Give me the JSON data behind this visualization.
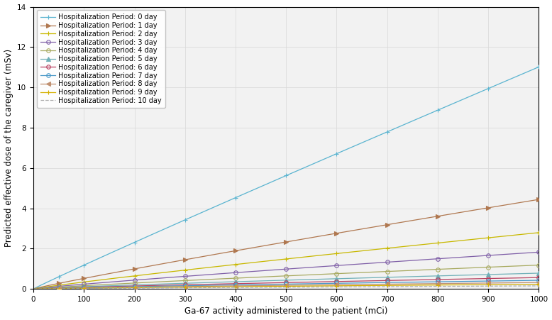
{
  "x_values": [
    50,
    100,
    200,
    300,
    400,
    500,
    600,
    700,
    800,
    900,
    1000
  ],
  "lines": [
    {
      "label": "Hospitalization Period: 0 day",
      "color": "#5ab4d0",
      "linestyle": "-",
      "marker": "+",
      "markerfacecolor": "filled",
      "a": 0.01355,
      "b": 0.97
    },
    {
      "label": "Hospitalization Period: 1 day",
      "color": "#b07850",
      "linestyle": "-",
      "marker": ">",
      "markerfacecolor": "filled",
      "a": 0.0072,
      "b": 0.93
    },
    {
      "label": "Hospitalization Period: 2 day",
      "color": "#c8b800",
      "linestyle": "-",
      "marker": "+",
      "markerfacecolor": "filled",
      "a": 0.0052,
      "b": 0.91
    },
    {
      "label": "Hospitalization Period: 3 day",
      "color": "#8060a8",
      "linestyle": "-",
      "marker": "o",
      "markerfacecolor": "open",
      "a": 0.0039,
      "b": 0.89
    },
    {
      "label": "Hospitalization Period: 4 day",
      "color": "#a8aa60",
      "linestyle": "-",
      "marker": "o",
      "markerfacecolor": "open",
      "a": 0.0029,
      "b": 0.87
    },
    {
      "label": "Hospitalization Period: 5 day",
      "color": "#70b0b8",
      "linestyle": "-",
      "marker": "^",
      "markerfacecolor": "filled",
      "a": 0.0022,
      "b": 0.85
    },
    {
      "label": "Hospitalization Period: 6 day",
      "color": "#b84060",
      "linestyle": "-",
      "marker": "o",
      "markerfacecolor": "open",
      "a": 0.0017,
      "b": 0.84
    },
    {
      "label": "Hospitalization Period: 7 day",
      "color": "#4898c8",
      "linestyle": "-",
      "marker": "o",
      "markerfacecolor": "open",
      "a": 0.00138,
      "b": 0.83
    },
    {
      "label": "Hospitalization Period: 8 day",
      "color": "#c09070",
      "linestyle": "-",
      "marker": "<",
      "markerfacecolor": "filled",
      "a": 0.0011,
      "b": 0.82
    },
    {
      "label": "Hospitalization Period: 9 day",
      "color": "#d4b000",
      "linestyle": "-",
      "marker": "+",
      "markerfacecolor": "filled",
      "a": 0.00086,
      "b": 0.81
    },
    {
      "label": "Hospitalization Period: 10 day",
      "color": "#b0b0b0",
      "linestyle": "--",
      "marker": "none",
      "markerfacecolor": "none",
      "a": 0.0006,
      "b": 0.8
    }
  ],
  "xlabel": "Ga-67 activity administered to the patient (mCi)",
  "ylabel": "Predicted effective dose of the caregiver (mSv)",
  "xlim": [
    0,
    1000
  ],
  "ylim": [
    0,
    14
  ],
  "yticks": [
    0,
    2,
    4,
    6,
    8,
    10,
    12,
    14
  ],
  "xticks": [
    0,
    100,
    200,
    300,
    400,
    500,
    600,
    700,
    800,
    900,
    1000
  ],
  "background_color": "#f2f2f2",
  "legend_fontsize": 7.0,
  "axis_fontsize": 8.5,
  "marker_size": 4,
  "linewidth": 0.9
}
